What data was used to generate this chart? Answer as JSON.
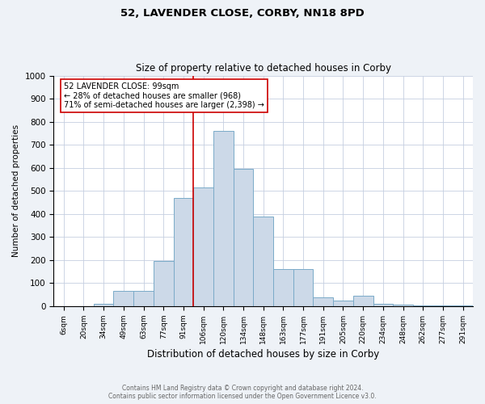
{
  "title": "52, LAVENDER CLOSE, CORBY, NN18 8PD",
  "subtitle": "Size of property relative to detached houses in Corby",
  "xlabel": "Distribution of detached houses by size in Corby",
  "ylabel": "Number of detached properties",
  "categories": [
    "6sqm",
    "20sqm",
    "34sqm",
    "49sqm",
    "63sqm",
    "77sqm",
    "91sqm",
    "106sqm",
    "120sqm",
    "134sqm",
    "148sqm",
    "163sqm",
    "177sqm",
    "191sqm",
    "205sqm",
    "220sqm",
    "234sqm",
    "248sqm",
    "262sqm",
    "277sqm",
    "291sqm"
  ],
  "values": [
    0,
    0,
    10,
    65,
    65,
    195,
    470,
    515,
    760,
    595,
    390,
    160,
    160,
    40,
    25,
    45,
    10,
    8,
    2,
    5,
    5
  ],
  "bar_color": "#ccd9e8",
  "bar_edge_color": "#7aaac8",
  "property_label": "52 LAVENDER CLOSE: 99sqm",
  "annotation_line1": "← 28% of detached houses are smaller (968)",
  "annotation_line2": "71% of semi-detached houses are larger (2,398) →",
  "annotation_box_color": "#ffffff",
  "annotation_box_edge": "#cc0000",
  "vline_color": "#cc0000",
  "ylim": [
    0,
    1000
  ],
  "footer1": "Contains HM Land Registry data © Crown copyright and database right 2024.",
  "footer2": "Contains public sector information licensed under the Open Government Licence v3.0.",
  "bg_color": "#eef2f7",
  "plot_bg_color": "#ffffff",
  "grid_color": "#c5cfe0"
}
